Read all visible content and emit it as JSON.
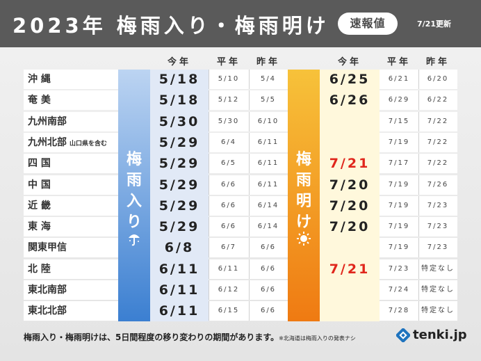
{
  "header": {
    "title": "2023年 梅雨入り・梅雨明け",
    "badge": "速報値",
    "updated": "7/21更新"
  },
  "columns": {
    "tsuyu_today": "今年",
    "tsuyu_normal": "平年",
    "tsuyu_last": "昨年",
    "ake_today": "今年",
    "ake_normal": "平年",
    "ake_last": "昨年"
  },
  "bands": {
    "tsuyu_iri": [
      "梅",
      "雨",
      "入",
      "り"
    ],
    "tsuyu_ake": [
      "梅",
      "雨",
      "明",
      "け"
    ],
    "tsuyu_icon": "umbrella-icon",
    "ake_icon": "sun-icon"
  },
  "rows": [
    {
      "name": "沖 縄",
      "note": "",
      "iri": "5/18",
      "iri_normal": "5/10",
      "iri_last": "5/4",
      "ake": "6/25",
      "ake_red": false,
      "ake_normal": "6/21",
      "ake_last": "6/20"
    },
    {
      "name": "奄 美",
      "note": "",
      "iri": "5/18",
      "iri_normal": "5/12",
      "iri_last": "5/5",
      "ake": "6/26",
      "ake_red": false,
      "ake_normal": "6/29",
      "ake_last": "6/22"
    },
    {
      "name": "九州南部",
      "note": "",
      "iri": "5/30",
      "iri_normal": "5/30",
      "iri_last": "6/10",
      "ake": "",
      "ake_red": false,
      "ake_normal": "7/15",
      "ake_last": "7/22"
    },
    {
      "name": "九州北部",
      "note": "山口県を含む",
      "iri": "5/29",
      "iri_normal": "6/4",
      "iri_last": "6/11",
      "ake": "",
      "ake_red": false,
      "ake_normal": "7/19",
      "ake_last": "7/22"
    },
    {
      "name": "四 国",
      "note": "",
      "iri": "5/29",
      "iri_normal": "6/5",
      "iri_last": "6/11",
      "ake": "7/21",
      "ake_red": true,
      "ake_normal": "7/17",
      "ake_last": "7/22"
    },
    {
      "name": "中 国",
      "note": "",
      "iri": "5/29",
      "iri_normal": "6/6",
      "iri_last": "6/11",
      "ake": "7/20",
      "ake_red": false,
      "ake_normal": "7/19",
      "ake_last": "7/26"
    },
    {
      "name": "近 畿",
      "note": "",
      "iri": "5/29",
      "iri_normal": "6/6",
      "iri_last": "6/14",
      "ake": "7/20",
      "ake_red": false,
      "ake_normal": "7/19",
      "ake_last": "7/23"
    },
    {
      "name": "東 海",
      "note": "",
      "iri": "5/29",
      "iri_normal": "6/6",
      "iri_last": "6/14",
      "ake": "7/20",
      "ake_red": false,
      "ake_normal": "7/19",
      "ake_last": "7/23"
    },
    {
      "name": "関東甲信",
      "note": "",
      "iri": "6/8",
      "iri_normal": "6/7",
      "iri_last": "6/6",
      "ake": "",
      "ake_red": false,
      "ake_normal": "7/19",
      "ake_last": "7/23"
    },
    {
      "name": "北 陸",
      "note": "",
      "iri": "6/11",
      "iri_normal": "6/11",
      "iri_last": "6/6",
      "ake": "7/21",
      "ake_red": true,
      "ake_normal": "7/23",
      "ake_last": "特定なし"
    },
    {
      "name": "東北南部",
      "note": "",
      "iri": "6/11",
      "iri_normal": "6/12",
      "iri_last": "6/6",
      "ake": "",
      "ake_red": false,
      "ake_normal": "7/24",
      "ake_last": "特定なし"
    },
    {
      "name": "東北北部",
      "note": "",
      "iri": "6/11",
      "iri_normal": "6/15",
      "iri_last": "6/6",
      "ake": "",
      "ake_red": false,
      "ake_normal": "7/28",
      "ake_last": "特定なし"
    }
  ],
  "footer": {
    "text": "梅雨入り・梅雨明けは、5日間程度の移り変わりの期間があります。",
    "note": "※北海道は梅雨入りの発表ナシ",
    "logo": "tenki.jp",
    "logo_icon": "tenki-logo-icon"
  },
  "colors": {
    "header_bg": "#5a5a5a",
    "tsuyu_band": "#3b7fd1",
    "ake_band": "#ef7a12",
    "red_text": "#e0261c"
  }
}
